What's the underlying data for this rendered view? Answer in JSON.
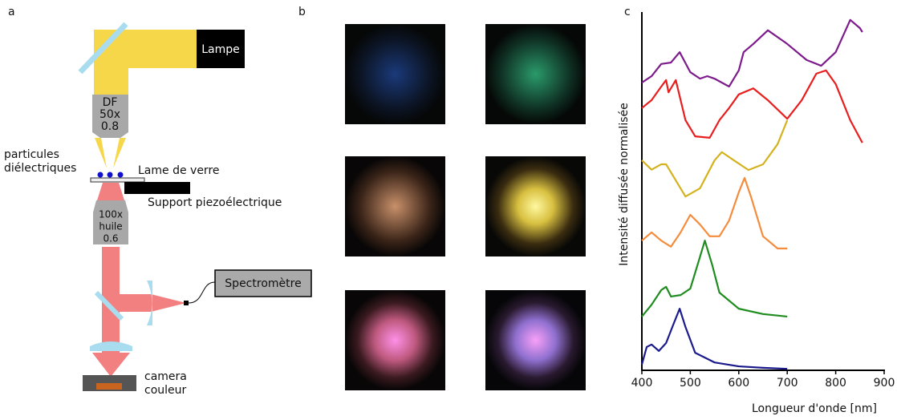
{
  "panels": {
    "a": "a",
    "b": "b",
    "c": "c"
  },
  "diagram": {
    "lamp": "Lampe",
    "objective_top": [
      "DF",
      "50x",
      "0.8"
    ],
    "particles": [
      "particules",
      "diélectriques"
    ],
    "slide": "Lame de verre",
    "support": "Support piezoélectrique",
    "objective_bottom": [
      "100x",
      "huile",
      "0.6"
    ],
    "spectrometer": "Spectromètre",
    "camera": [
      "camera",
      "couleur"
    ]
  },
  "chart_data": {
    "type": "line",
    "xlabel": "Longueur d'onde [nm]",
    "ylabel": "Intensité diffusée normalisée",
    "xlim": [
      400,
      900
    ],
    "xticks": [
      400,
      500,
      600,
      700,
      800,
      900
    ],
    "ylim": [
      0,
      10
    ],
    "series": [
      {
        "color": "#1a1a8c",
        "x": [
          400,
          410,
          420,
          435,
          450,
          465,
          478,
          490,
          510,
          550,
          600,
          650,
          700
        ],
        "values": [
          0.16,
          0.65,
          0.72,
          0.54,
          0.76,
          1.28,
          1.72,
          1.21,
          0.49,
          0.22,
          0.11,
          0.07,
          0.04
        ]
      },
      {
        "color": "#1e8c1e",
        "x": [
          400,
          420,
          440,
          450,
          460,
          480,
          500,
          520,
          530,
          545,
          560,
          600,
          650,
          700
        ],
        "values": [
          1.5,
          1.83,
          2.24,
          2.33,
          2.06,
          2.1,
          2.28,
          3.17,
          3.62,
          2.95,
          2.17,
          1.72,
          1.57,
          1.5
        ]
      },
      {
        "color": "#f58c3c",
        "x": [
          400,
          420,
          440,
          460,
          480,
          500,
          520,
          540,
          560,
          580,
          600,
          612,
          625,
          650,
          680,
          700
        ],
        "values": [
          3.62,
          3.85,
          3.62,
          3.45,
          3.85,
          4.34,
          4.07,
          3.74,
          3.74,
          4.18,
          4.97,
          5.37,
          4.85,
          3.74,
          3.4,
          3.4
        ]
      },
      {
        "color": "#d4b21e",
        "x": [
          400,
          420,
          440,
          450,
          470,
          490,
          520,
          550,
          565,
          590,
          620,
          650,
          680,
          700
        ],
        "values": [
          5.86,
          5.6,
          5.75,
          5.75,
          5.3,
          4.85,
          5.08,
          5.86,
          6.09,
          5.86,
          5.59,
          5.75,
          6.31,
          6.98
        ]
      },
      {
        "color": "#e81e1e",
        "x": [
          400,
          420,
          440,
          450,
          455,
          470,
          490,
          510,
          540,
          560,
          580,
          600,
          630,
          660,
          700,
          730,
          760,
          780,
          800,
          830,
          855
        ],
        "values": [
          7.32,
          7.54,
          7.92,
          8.1,
          7.76,
          8.1,
          6.98,
          6.53,
          6.49,
          6.98,
          7.32,
          7.7,
          7.87,
          7.54,
          7.02,
          7.54,
          8.28,
          8.37,
          7.99,
          6.98,
          6.35
        ]
      },
      {
        "color": "#7d1a8c",
        "x": [
          400,
          420,
          440,
          460,
          478,
          500,
          520,
          535,
          550,
          580,
          600,
          610,
          630,
          660,
          700,
          740,
          770,
          800,
          830,
          850,
          855
        ],
        "values": [
          8.03,
          8.21,
          8.55,
          8.59,
          8.88,
          8.32,
          8.14,
          8.21,
          8.14,
          7.92,
          8.37,
          8.88,
          9.11,
          9.49,
          9.11,
          8.66,
          8.5,
          8.88,
          9.78,
          9.55,
          9.44
        ]
      }
    ]
  }
}
